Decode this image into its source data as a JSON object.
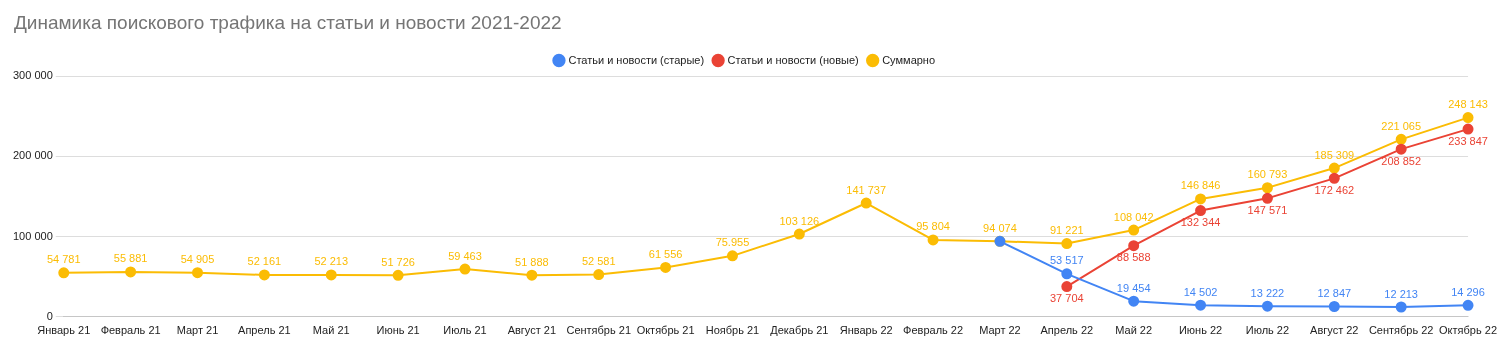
{
  "chart_data": {
    "type": "line",
    "title": "Динамика поискового трафика на статьи и новости 2021-2022",
    "categories": [
      "Январь 21",
      "Февраль 21",
      "Март 21",
      "Апрель 21",
      "Май 21",
      "Июнь 21",
      "Июль 21",
      "Август 21",
      "Сентябрь 21",
      "Октябрь 21",
      "Ноябрь 21",
      "Декабрь 21",
      "Январь 22",
      "Февраль 22",
      "Март 22",
      "Апрель 22",
      "Май 22",
      "Июнь 22",
      "Июль 22",
      "Август 22",
      "Сентябрь 22",
      "Октябрь 22"
    ],
    "series": [
      {
        "name": "Статьи и новости (старые)",
        "color": "#4285f4",
        "values": [
          null,
          null,
          null,
          null,
          null,
          null,
          null,
          null,
          null,
          null,
          null,
          null,
          null,
          null,
          94074,
          53517,
          19454,
          14502,
          13222,
          12847,
          12213,
          14296
        ],
        "value_labels": [
          null,
          null,
          null,
          null,
          null,
          null,
          null,
          null,
          null,
          null,
          null,
          null,
          null,
          null,
          null,
          "53 517",
          "19 454",
          "14 502",
          "13 222",
          "12 847",
          "12 213",
          "14 296"
        ]
      },
      {
        "name": "Статьи и новости (новые)",
        "color": "#ea4335",
        "values": [
          null,
          null,
          null,
          null,
          null,
          null,
          null,
          null,
          null,
          null,
          null,
          null,
          null,
          null,
          null,
          37704,
          88588,
          132344,
          147571,
          172462,
          208852,
          233847
        ],
        "value_labels": [
          null,
          null,
          null,
          null,
          null,
          null,
          null,
          null,
          null,
          null,
          null,
          null,
          null,
          null,
          null,
          "37 704",
          "88 588",
          "132 344",
          "147 571",
          "172 462",
          "208 852",
          "233 847"
        ]
      },
      {
        "name": "Суммарно",
        "color": "#fbbc04",
        "values": [
          54781,
          55881,
          54905,
          52161,
          52213,
          51726,
          59463,
          51888,
          52581,
          61556,
          75955,
          103126,
          141737,
          95804,
          94074,
          91221,
          108042,
          146846,
          160793,
          185309,
          221065,
          248143
        ],
        "value_labels": [
          "54 781",
          "55 881",
          "54 905",
          "52 161",
          "52 213",
          "51 726",
          "59 463",
          "51 888",
          "52 581",
          "61 556",
          "75.955",
          "103 126",
          "141 737",
          "95 804",
          "94 074",
          "91 221",
          "108 042",
          "146 846",
          "160 793",
          "185 309",
          "221 065",
          "248 143"
        ]
      }
    ],
    "ylim": [
      0,
      300000
    ],
    "yticks": [
      {
        "value": 0,
        "label": "0"
      },
      {
        "value": 100000,
        "label": "100 000"
      },
      {
        "value": 200000,
        "label": "200 000"
      },
      {
        "value": 300000,
        "label": "300 000"
      }
    ],
    "grid": "y",
    "legend": "top",
    "marker": "circle",
    "line_style": "solid"
  }
}
